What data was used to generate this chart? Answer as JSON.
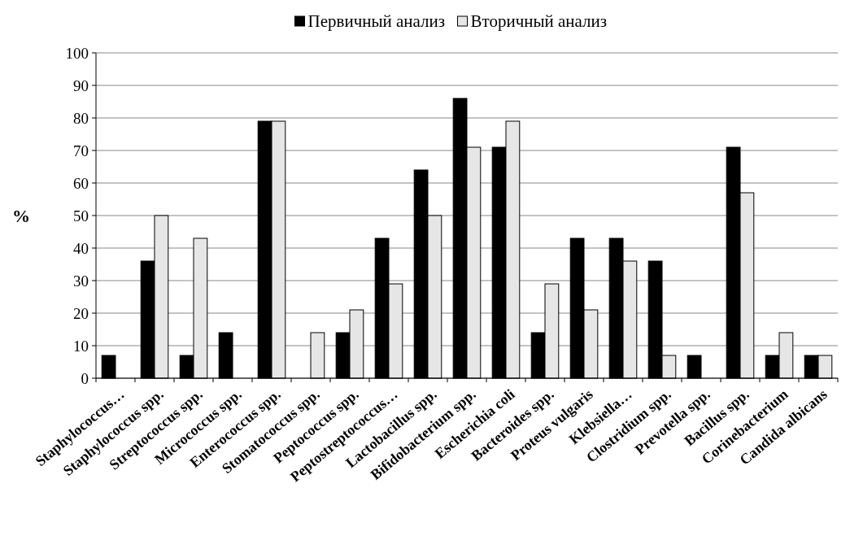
{
  "chart_data": {
    "type": "bar",
    "ylabel": "%",
    "categories": [
      "Staphylococcus…",
      "Staphylococcus spp.",
      "Streptococcus spp.",
      "Micrococcus spp.",
      "Enterococcus spp.",
      "Stomatococcus spp.",
      "Peptococcus spp.",
      "Peptostreptococcus…",
      "Lactobacillus spp.",
      "Bifidobacterium spp.",
      "Escherichia coli",
      "Bacteroides spp.",
      "Proteus vulgaris",
      "Klebsiella…",
      "Clostridium spp.",
      "Prevotella spp.",
      "Bacillus spp.",
      "Corinebacterium",
      "Candida albicans"
    ],
    "series": [
      {
        "name": "Первичный анализ",
        "color": "#000000",
        "values": [
          7,
          36,
          7,
          14,
          79,
          0,
          14,
          43,
          64,
          86,
          71,
          14,
          43,
          43,
          36,
          7,
          71,
          7,
          7
        ]
      },
      {
        "name": "Вторичный анализ",
        "color": "#e6e6e6",
        "values": [
          0,
          50,
          43,
          0,
          79,
          14,
          21,
          29,
          50,
          71,
          79,
          29,
          21,
          36,
          7,
          0,
          57,
          14,
          7
        ]
      }
    ],
    "ylim": [
      0,
      100
    ],
    "yticks": [
      0,
      10,
      20,
      30,
      40,
      50,
      60,
      70,
      80,
      90,
      100
    ],
    "grid": "y",
    "legend": "top"
  }
}
